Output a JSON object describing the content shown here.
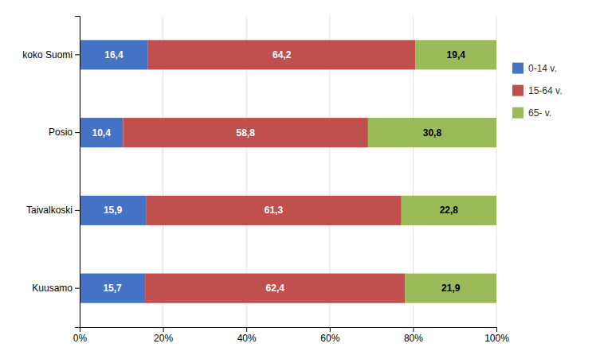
{
  "chart_data": {
    "type": "bar",
    "orientation": "horizontal",
    "stacked": true,
    "categories": [
      "Kuusamo",
      "Taivalkoski",
      "Posio",
      "koko Suomi"
    ],
    "series": [
      {
        "name": "0-14 v.",
        "color": "#4472C4",
        "values": [
          15.7,
          15.9,
          10.4,
          16.4
        ],
        "value_labels": [
          "15,7",
          "15,9",
          "10,4",
          "16,4"
        ]
      },
      {
        "name": "15-64 v.",
        "color": "#C0504D",
        "values": [
          62.4,
          61.3,
          58.8,
          64.2
        ],
        "value_labels": [
          "62,4",
          "61,3",
          "58,8",
          "64,2"
        ]
      },
      {
        "name": "65- v.",
        "color": "#9BBB59",
        "values": [
          21.9,
          22.8,
          30.8,
          19.4
        ],
        "value_labels": [
          "21,9",
          "22,8",
          "30,8",
          "19,4"
        ]
      }
    ],
    "xlim": [
      0,
      100
    ],
    "xticks": [
      {
        "value": 0,
        "label": "0%"
      },
      {
        "value": 20,
        "label": "20%"
      },
      {
        "value": 40,
        "label": "40%"
      },
      {
        "value": 60,
        "label": "60%"
      },
      {
        "value": 80,
        "label": "80%"
      },
      {
        "value": 100,
        "label": "100%"
      }
    ],
    "grid": true,
    "data_labels": true,
    "legend": "right"
  }
}
